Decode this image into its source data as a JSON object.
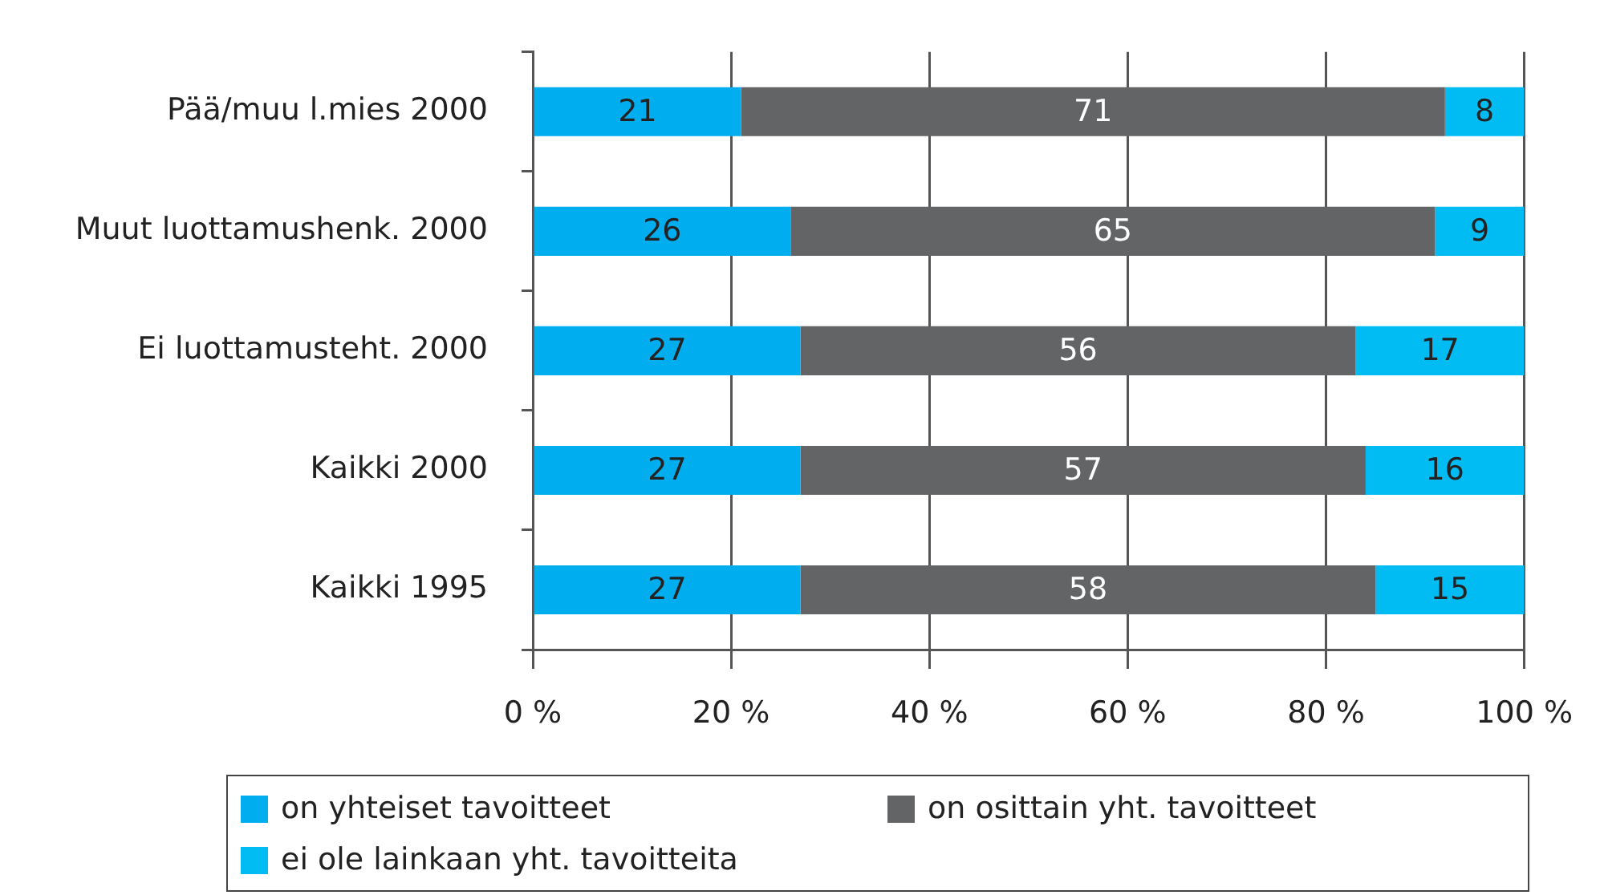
{
  "chart_data": {
    "type": "bar",
    "orientation": "horizontal",
    "stacked": true,
    "categories": [
      "Pää/muu l.mies 2000",
      "Muut luottamushenk. 2000",
      "Ei luottamusteht. 2000",
      "Kaikki 2000",
      "Kaikki 1995"
    ],
    "series": [
      {
        "name": "on yhteiset tavoitteet",
        "color": "#00adee",
        "values": [
          21,
          26,
          27,
          27,
          27
        ]
      },
      {
        "name": "on osittain yht. tavoitteet",
        "color": "#636466",
        "values": [
          71,
          65,
          56,
          57,
          58
        ]
      },
      {
        "name": "ei ole lainkaan yht. tavoitteita",
        "color": "#00bcf2",
        "values": [
          8,
          9,
          17,
          16,
          15
        ]
      }
    ],
    "xlim": [
      0,
      100
    ],
    "xticks": [
      {
        "value": 0,
        "label": "0 %"
      },
      {
        "value": 20,
        "label": "20 %"
      },
      {
        "value": 40,
        "label": "40 %"
      },
      {
        "value": 60,
        "label": "60 %"
      },
      {
        "value": 80,
        "label": "80 %"
      },
      {
        "value": 100,
        "label": "100 %"
      }
    ],
    "grid": "x",
    "legend": "bottom",
    "data_labels": true
  }
}
